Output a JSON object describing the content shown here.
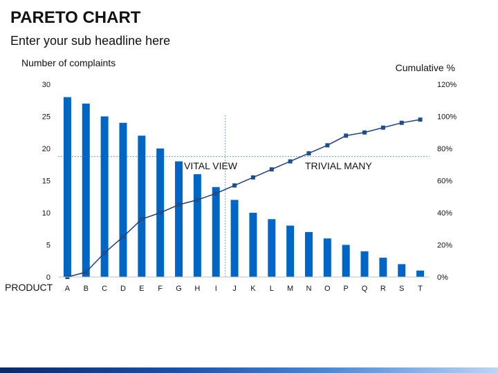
{
  "header": {
    "title": "PARETO CHART",
    "subtitle": "Enter your sub headline here"
  },
  "colors": {
    "bar": "#0066c6",
    "line": "#1f3f7a",
    "marker": "#1f4e8c",
    "guide": "#6f9ccb",
    "footer_start": "#0a2a6b",
    "footer_end": "#bcd6f3"
  },
  "chart_data": {
    "type": "bar",
    "xlabel": "PRODUCT",
    "ylabel": "Number of complaints",
    "y2label": "Cumulative %",
    "categories": [
      "A",
      "B",
      "C",
      "D",
      "E",
      "F",
      "G",
      "H",
      "I",
      "J",
      "K",
      "L",
      "M",
      "N",
      "O",
      "P",
      "Q",
      "R",
      "S",
      "T"
    ],
    "series": [
      {
        "type": "bar",
        "axis": "left",
        "values": [
          28,
          27,
          25,
          24,
          22,
          20,
          18,
          16,
          14,
          12,
          10,
          9,
          8,
          7,
          6,
          5,
          4,
          3,
          2,
          1
        ]
      },
      {
        "type": "line",
        "axis": "right",
        "values": [
          0,
          3,
          15,
          25,
          36,
          40,
          45,
          48,
          52,
          57,
          62,
          67,
          72,
          77,
          82,
          88,
          90,
          93,
          96,
          98
        ]
      }
    ],
    "ylim": [
      0,
      30
    ],
    "yticks": [
      "0",
      "5",
      "10",
      "15",
      "20",
      "25",
      "30"
    ],
    "y2lim": [
      0,
      120
    ],
    "y2ticks": [
      "0%",
      "20%",
      "40%",
      "60%",
      "80%",
      "100%",
      "120%"
    ],
    "annotations": {
      "vital_label": "VITAL VIEW",
      "trivial_label": "TRIVIAL MANY",
      "threshold_percent": 75,
      "divider_between": [
        "I",
        "J"
      ]
    },
    "grid": false
  }
}
